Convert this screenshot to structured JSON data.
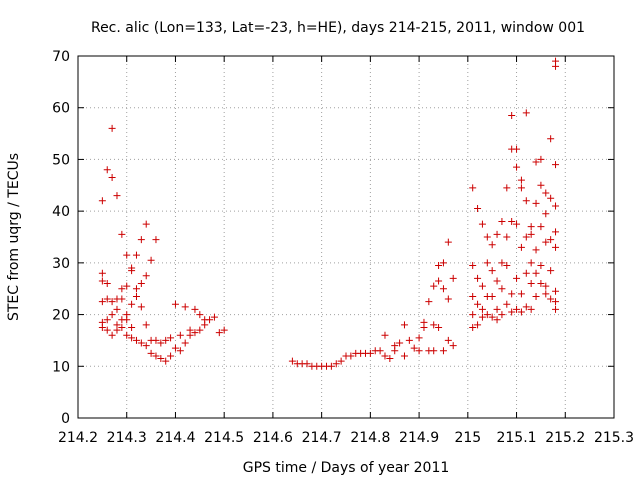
{
  "chart_data": {
    "type": "scatter",
    "title": "Rec. alic (Lon=133, Lat=-23, h=HE), days 214-215, 2011, window 001",
    "xlabel": "GPS time / Days of year 2011",
    "ylabel": "STEC from uqrg / TECUs",
    "xlim": [
      214.2,
      215.3
    ],
    "ylim": [
      0,
      70
    ],
    "xticks": [
      "214.2",
      "214.3",
      "214.4",
      "214.5",
      "214.6",
      "214.7",
      "214.8",
      "214.9",
      "215",
      "215.1",
      "215.2",
      "215.3"
    ],
    "yticks": [
      "0",
      "10",
      "20",
      "30",
      "40",
      "50",
      "60",
      "70"
    ],
    "grid": true,
    "marker": "+",
    "color": "#cc0000",
    "points": [
      [
        214.25,
        42.0
      ],
      [
        214.25,
        28.0
      ],
      [
        214.25,
        26.5
      ],
      [
        214.25,
        22.5
      ],
      [
        214.25,
        18.5
      ],
      [
        214.25,
        17.5
      ],
      [
        214.26,
        48.0
      ],
      [
        214.26,
        26.0
      ],
      [
        214.26,
        23.0
      ],
      [
        214.26,
        17.0
      ],
      [
        214.26,
        19.0
      ],
      [
        214.27,
        56.0
      ],
      [
        214.27,
        46.5
      ],
      [
        214.27,
        22.5
      ],
      [
        214.27,
        20.0
      ],
      [
        214.27,
        16.0
      ],
      [
        214.28,
        43.0
      ],
      [
        214.28,
        23.0
      ],
      [
        214.28,
        21.0
      ],
      [
        214.28,
        18.0
      ],
      [
        214.28,
        17.0
      ],
      [
        214.29,
        35.5
      ],
      [
        214.29,
        25.0
      ],
      [
        214.29,
        23.0
      ],
      [
        214.29,
        19.0
      ],
      [
        214.29,
        17.5
      ],
      [
        214.3,
        31.5
      ],
      [
        214.3,
        25.5
      ],
      [
        214.3,
        20.0
      ],
      [
        214.3,
        19.0
      ],
      [
        214.3,
        16.0
      ],
      [
        214.31,
        29.0
      ],
      [
        214.31,
        28.5
      ],
      [
        214.31,
        22.0
      ],
      [
        214.31,
        17.5
      ],
      [
        214.31,
        15.5
      ],
      [
        214.32,
        31.5
      ],
      [
        214.32,
        25.0
      ],
      [
        214.32,
        23.5
      ],
      [
        214.32,
        15.0
      ],
      [
        214.33,
        34.5
      ],
      [
        214.33,
        26.0
      ],
      [
        214.33,
        21.5
      ],
      [
        214.33,
        14.5
      ],
      [
        214.34,
        37.5
      ],
      [
        214.34,
        27.5
      ],
      [
        214.34,
        18.0
      ],
      [
        214.34,
        14.0
      ],
      [
        214.35,
        30.5
      ],
      [
        214.35,
        15.0
      ],
      [
        214.35,
        12.5
      ],
      [
        214.36,
        34.5
      ],
      [
        214.36,
        15.0
      ],
      [
        214.36,
        12.0
      ],
      [
        214.37,
        14.5
      ],
      [
        214.37,
        11.5
      ],
      [
        214.38,
        15.0
      ],
      [
        214.38,
        11.0
      ],
      [
        214.39,
        15.5
      ],
      [
        214.39,
        12.0
      ],
      [
        214.4,
        13.5
      ],
      [
        214.4,
        22.0
      ],
      [
        214.41,
        13.0
      ],
      [
        214.41,
        16.0
      ],
      [
        214.42,
        14.5
      ],
      [
        214.42,
        21.5
      ],
      [
        214.43,
        17.0
      ],
      [
        214.43,
        16.0
      ],
      [
        214.44,
        16.5
      ],
      [
        214.44,
        21.0
      ],
      [
        214.45,
        17.0
      ],
      [
        214.45,
        20.0
      ],
      [
        214.46,
        18.0
      ],
      [
        214.46,
        19.0
      ],
      [
        214.47,
        19.0
      ],
      [
        214.48,
        19.5
      ],
      [
        214.49,
        16.5
      ],
      [
        214.5,
        17.0
      ],
      [
        214.64,
        11.0
      ],
      [
        214.65,
        10.5
      ],
      [
        214.66,
        10.5
      ],
      [
        214.67,
        10.5
      ],
      [
        214.68,
        10.0
      ],
      [
        214.69,
        10.0
      ],
      [
        214.7,
        10.0
      ],
      [
        214.71,
        10.0
      ],
      [
        214.72,
        10.0
      ],
      [
        214.73,
        10.5
      ],
      [
        214.74,
        11.0
      ],
      [
        214.75,
        12.0
      ],
      [
        214.76,
        12.0
      ],
      [
        214.77,
        12.5
      ],
      [
        214.78,
        12.5
      ],
      [
        214.79,
        12.5
      ],
      [
        214.8,
        12.5
      ],
      [
        214.81,
        13.0
      ],
      [
        214.82,
        13.0
      ],
      [
        214.83,
        16.0
      ],
      [
        214.83,
        12.0
      ],
      [
        214.84,
        11.5
      ],
      [
        214.85,
        14.0
      ],
      [
        214.85,
        13.0
      ],
      [
        214.86,
        14.5
      ],
      [
        214.87,
        18.0
      ],
      [
        214.87,
        12.0
      ],
      [
        214.88,
        15.0
      ],
      [
        214.89,
        13.5
      ],
      [
        214.9,
        15.5
      ],
      [
        214.9,
        13.0
      ],
      [
        214.91,
        18.5
      ],
      [
        214.91,
        17.5
      ],
      [
        214.92,
        22.5
      ],
      [
        214.92,
        13.0
      ],
      [
        214.93,
        25.5
      ],
      [
        214.93,
        18.0
      ],
      [
        214.93,
        13.0
      ],
      [
        214.94,
        29.5
      ],
      [
        214.94,
        26.5
      ],
      [
        214.94,
        17.5
      ],
      [
        214.95,
        30.0
      ],
      [
        214.95,
        25.0
      ],
      [
        214.95,
        13.0
      ],
      [
        214.96,
        34.0
      ],
      [
        214.96,
        23.0
      ],
      [
        214.96,
        15.0
      ],
      [
        214.97,
        27.0
      ],
      [
        214.97,
        14.0
      ],
      [
        215.01,
        44.5
      ],
      [
        215.01,
        29.5
      ],
      [
        215.01,
        23.5
      ],
      [
        215.01,
        20.0
      ],
      [
        215.01,
        17.5
      ],
      [
        215.02,
        40.5
      ],
      [
        215.02,
        27.0
      ],
      [
        215.02,
        22.0
      ],
      [
        215.02,
        18.0
      ],
      [
        215.03,
        37.5
      ],
      [
        215.03,
        25.5
      ],
      [
        215.03,
        21.0
      ],
      [
        215.03,
        19.5
      ],
      [
        215.04,
        35.0
      ],
      [
        215.04,
        30.0
      ],
      [
        215.04,
        23.5
      ],
      [
        215.04,
        20.0
      ],
      [
        215.05,
        33.5
      ],
      [
        215.05,
        28.5
      ],
      [
        215.05,
        23.5
      ],
      [
        215.05,
        19.5
      ],
      [
        215.06,
        35.5
      ],
      [
        215.06,
        26.5
      ],
      [
        215.06,
        21.0
      ],
      [
        215.06,
        19.0
      ],
      [
        215.07,
        38.0
      ],
      [
        215.07,
        30.0
      ],
      [
        215.07,
        25.0
      ],
      [
        215.07,
        20.0
      ],
      [
        215.08,
        44.5
      ],
      [
        215.08,
        35.0
      ],
      [
        215.08,
        29.5
      ],
      [
        215.08,
        22.0
      ],
      [
        215.09,
        58.5
      ],
      [
        215.09,
        52.0
      ],
      [
        215.09,
        38.0
      ],
      [
        215.09,
        24.0
      ],
      [
        215.09,
        20.5
      ],
      [
        215.1,
        52.0
      ],
      [
        215.1,
        48.5
      ],
      [
        215.1,
        37.5
      ],
      [
        215.1,
        27.0
      ],
      [
        215.1,
        21.0
      ],
      [
        215.11,
        46.0
      ],
      [
        215.11,
        44.5
      ],
      [
        215.11,
        33.0
      ],
      [
        215.11,
        24.0
      ],
      [
        215.11,
        20.5
      ],
      [
        215.12,
        59.0
      ],
      [
        215.12,
        42.0
      ],
      [
        215.12,
        35.0
      ],
      [
        215.12,
        28.0
      ],
      [
        215.12,
        21.5
      ],
      [
        215.13,
        37.0
      ],
      [
        215.13,
        35.5
      ],
      [
        215.13,
        30.0
      ],
      [
        215.13,
        26.0
      ],
      [
        215.13,
        21.0
      ],
      [
        215.14,
        49.5
      ],
      [
        215.14,
        41.5
      ],
      [
        215.14,
        32.5
      ],
      [
        215.14,
        28.0
      ],
      [
        215.14,
        23.5
      ],
      [
        215.15,
        50.0
      ],
      [
        215.15,
        45.0
      ],
      [
        215.15,
        37.0
      ],
      [
        215.15,
        29.5
      ],
      [
        215.15,
        26.0
      ],
      [
        215.16,
        43.5
      ],
      [
        215.16,
        39.5
      ],
      [
        215.16,
        34.0
      ],
      [
        215.16,
        25.5
      ],
      [
        215.16,
        24.0
      ],
      [
        215.17,
        54.0
      ],
      [
        215.17,
        42.5
      ],
      [
        215.17,
        34.5
      ],
      [
        215.17,
        28.5
      ],
      [
        215.17,
        23.0
      ],
      [
        215.18,
        69.0
      ],
      [
        215.18,
        49.0
      ],
      [
        215.18,
        41.0
      ],
      [
        215.18,
        36.0
      ],
      [
        215.18,
        33.0
      ],
      [
        215.18,
        24.5
      ],
      [
        215.18,
        22.5
      ],
      [
        215.18,
        21.0
      ],
      [
        215.18,
        68.0
      ]
    ]
  }
}
